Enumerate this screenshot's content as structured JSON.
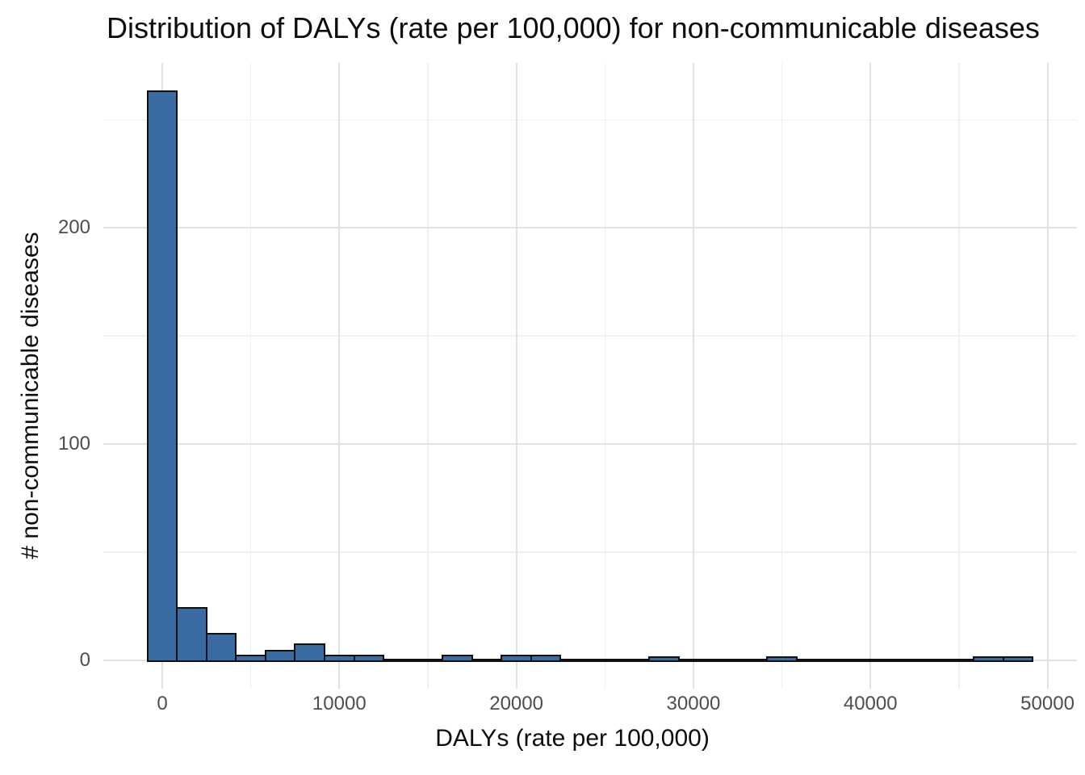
{
  "chart_data": {
    "type": "histogram",
    "title": "Distribution of DALYs (rate per 100,000) for non-communicable diseases",
    "xlabel": "DALYs (rate per 100,000)",
    "ylabel": "# non-communicable diseases",
    "legend": "none",
    "grid": true,
    "binwidth": 1666.67,
    "bin_centers": [
      0,
      1666.7,
      3333.3,
      5000,
      6666.7,
      8333.3,
      10000,
      11666.7,
      13333.3,
      15000,
      16666.7,
      18333.3,
      20000,
      21666.7,
      23333.3,
      25000,
      26666.7,
      28333.3,
      30000,
      31666.7,
      33333.3,
      35000,
      36666.7,
      38333.3,
      40000,
      41666.7,
      43333.3,
      45000,
      46666.7,
      48333.3
    ],
    "counts": [
      263,
      24,
      12,
      2,
      4,
      7,
      2,
      2,
      0,
      0,
      2,
      0,
      2,
      2,
      0,
      0,
      0,
      1,
      0,
      0,
      0,
      1,
      0,
      0,
      0,
      0,
      0,
      0,
      1,
      1
    ],
    "x_ticks": [
      0,
      10000,
      20000,
      30000,
      40000,
      50000
    ],
    "x_tick_labels": [
      "0",
      "10000",
      "20000",
      "30000",
      "40000",
      "50000"
    ],
    "y_ticks": [
      0,
      100,
      200
    ],
    "y_tick_labels": [
      "0",
      "100",
      "200"
    ],
    "x_minor_gridlines": [
      5000,
      15000,
      25000,
      35000,
      45000
    ],
    "y_minor_gridlines": [
      50,
      150,
      250
    ],
    "xlim": [
      -3333,
      51667
    ],
    "ylim": [
      -13.2,
      276.3
    ],
    "colors": {
      "bar_fill": "#3a6ba3",
      "bar_stroke": "#101010",
      "grid_major": "#e2e2e2",
      "grid_minor": "#efefef",
      "tick_label": "#4d4d4d",
      "text": "#0d0d0d",
      "background": "#ffffff"
    }
  }
}
